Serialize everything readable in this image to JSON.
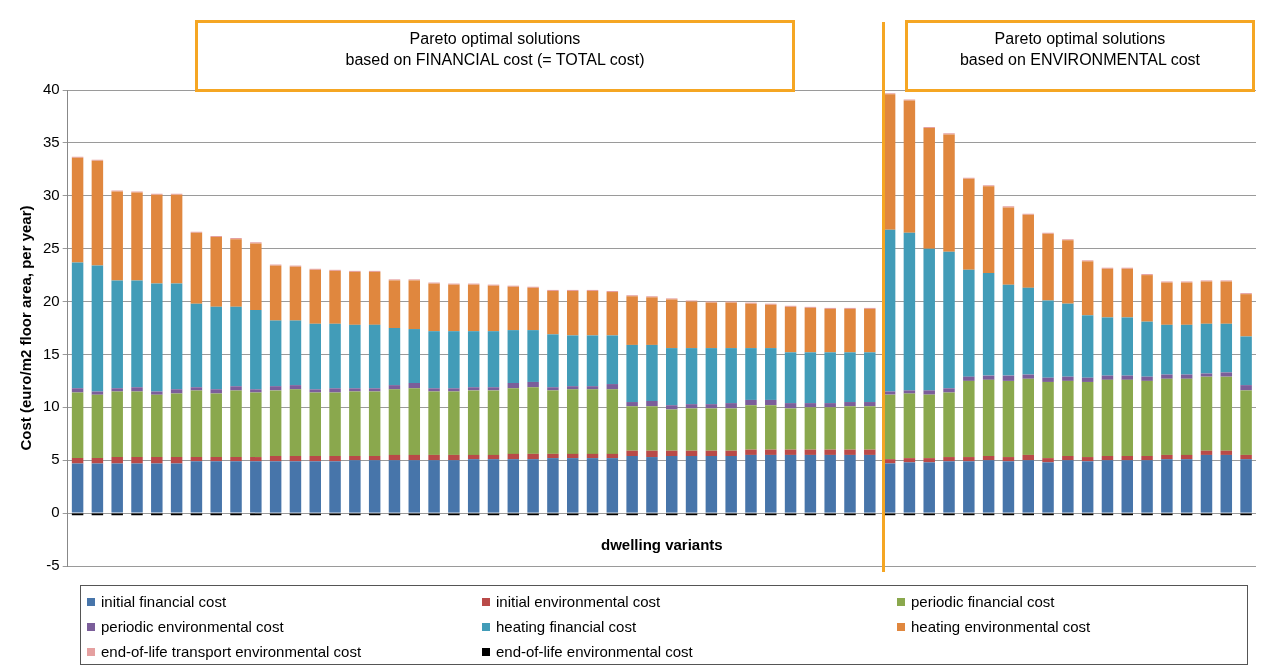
{
  "chart_data": {
    "type": "bar",
    "stacked": true,
    "xlabel": "dwelling variants",
    "ylabel": "Cost (euro/m2 floor area, per year)",
    "annotations": [
      "Pareto optimal solutions\nbased on FINANCIAL cost (= TOTAL cost)",
      "Pareto optimal solutions\nbased on ENVIRONMENTAL cost"
    ],
    "categories": [
      null,
      null,
      null,
      null,
      null,
      null,
      null,
      null,
      null,
      null,
      null,
      null,
      null,
      null,
      null,
      null,
      null,
      null,
      null,
      null,
      null,
      null,
      null,
      null,
      null,
      null,
      null,
      null,
      null,
      null,
      null,
      null,
      null,
      null,
      null,
      null,
      null,
      null,
      null,
      null,
      null,
      null,
      null,
      null,
      null,
      null,
      null,
      null,
      null,
      null,
      null,
      null,
      null,
      null,
      null,
      null,
      null,
      null,
      null,
      null
    ],
    "ylim": [
      -5,
      40
    ],
    "yticks": [
      -5,
      0,
      5,
      10,
      15,
      20,
      25,
      30,
      35,
      40
    ],
    "grid": "y",
    "legend": "bottom",
    "tick_labels": "y",
    "series": [
      {
        "name": "initial financial cost",
        "color": "#4775aa",
        "values": [
          4.7,
          4.7,
          4.7,
          4.7,
          4.7,
          4.7,
          4.9,
          4.9,
          4.9,
          4.9,
          4.9,
          4.9,
          4.9,
          4.9,
          5.0,
          5.0,
          5.0,
          5.0,
          5.0,
          5.0,
          5.1,
          5.1,
          5.1,
          5.1,
          5.2,
          5.2,
          5.2,
          5.2,
          5.4,
          5.3,
          5.4,
          5.4,
          5.4,
          5.4,
          5.5,
          5.5,
          5.5,
          5.5,
          5.5,
          5.5,
          5.5,
          4.7,
          4.8,
          4.8,
          4.9,
          4.9,
          5.0,
          4.9,
          5.0,
          4.8,
          5.0,
          4.9,
          5.0,
          5.0,
          5.0,
          5.1,
          5.1,
          5.5,
          5.5,
          5.1
        ]
      },
      {
        "name": "initial environmental cost",
        "color": "#b94a48",
        "values": [
          0.5,
          0.5,
          0.6,
          0.6,
          0.6,
          0.6,
          0.4,
          0.4,
          0.4,
          0.4,
          0.5,
          0.5,
          0.5,
          0.5,
          0.4,
          0.4,
          0.5,
          0.5,
          0.5,
          0.5,
          0.4,
          0.4,
          0.5,
          0.5,
          0.4,
          0.4,
          0.4,
          0.4,
          0.5,
          0.6,
          0.5,
          0.5,
          0.5,
          0.5,
          0.5,
          0.5,
          0.5,
          0.5,
          0.5,
          0.5,
          0.5,
          0.4,
          0.4,
          0.4,
          0.4,
          0.4,
          0.4,
          0.4,
          0.5,
          0.4,
          0.4,
          0.4,
          0.4,
          0.4,
          0.4,
          0.4,
          0.4,
          0.4,
          0.4,
          0.4
        ]
      },
      {
        "name": "periodic financial cost",
        "color": "#8aa84d",
        "values": [
          6.2,
          6.0,
          6.2,
          6.2,
          5.9,
          6.0,
          6.3,
          6.0,
          6.3,
          6.1,
          6.2,
          6.3,
          6.0,
          6.0,
          6.1,
          6.1,
          6.2,
          6.3,
          6.0,
          6.0,
          6.1,
          6.1,
          6.2,
          6.3,
          6.0,
          6.1,
          6.1,
          6.1,
          4.2,
          4.2,
          3.9,
          4.0,
          4.0,
          4.0,
          4.2,
          4.2,
          3.9,
          4.0,
          4.0,
          4.1,
          4.1,
          6.1,
          6.1,
          6.0,
          6.1,
          7.2,
          7.2,
          7.2,
          7.2,
          7.2,
          7.1,
          7.1,
          7.2,
          7.2,
          7.1,
          7.2,
          7.2,
          7.0,
          7.0,
          6.1
        ]
      },
      {
        "name": "periodic environmental cost",
        "color": "#7b5e9a",
        "values": [
          0.4,
          0.3,
          0.3,
          0.4,
          0.3,
          0.4,
          0.3,
          0.4,
          0.4,
          0.3,
          0.4,
          0.4,
          0.3,
          0.4,
          0.3,
          0.3,
          0.4,
          0.5,
          0.3,
          0.3,
          0.3,
          0.3,
          0.5,
          0.5,
          0.3,
          0.3,
          0.3,
          0.5,
          0.4,
          0.5,
          0.4,
          0.4,
          0.4,
          0.5,
          0.5,
          0.5,
          0.5,
          0.4,
          0.4,
          0.4,
          0.4,
          0.3,
          0.3,
          0.4,
          0.4,
          0.4,
          0.4,
          0.5,
          0.4,
          0.4,
          0.4,
          0.4,
          0.4,
          0.4,
          0.4,
          0.4,
          0.4,
          0.3,
          0.4,
          0.5
        ]
      },
      {
        "name": "heating financial cost",
        "color": "#429cb8",
        "values": [
          11.9,
          11.9,
          10.2,
          10.1,
          10.2,
          10.0,
          7.9,
          7.8,
          7.5,
          7.5,
          6.2,
          6.1,
          6.2,
          6.1,
          6.0,
          6.0,
          5.4,
          5.1,
          5.4,
          5.4,
          5.3,
          5.3,
          5.0,
          4.9,
          5.0,
          4.8,
          4.8,
          4.6,
          5.4,
          5.3,
          5.4,
          5.3,
          5.3,
          5.2,
          4.9,
          4.9,
          4.8,
          4.8,
          4.8,
          4.7,
          4.7,
          15.3,
          14.9,
          13.4,
          12.9,
          10.1,
          9.7,
          8.6,
          8.2,
          7.3,
          6.9,
          5.9,
          5.5,
          5.5,
          5.2,
          4.7,
          4.7,
          4.7,
          4.6,
          4.6
        ]
      },
      {
        "name": "heating environmental cost",
        "color": "#e0873e",
        "values": [
          9.9,
          9.9,
          8.4,
          8.3,
          8.4,
          8.4,
          6.7,
          6.6,
          6.4,
          6.3,
          5.2,
          5.1,
          5.1,
          5.0,
          5.0,
          5.0,
          4.5,
          4.6,
          4.5,
          4.4,
          4.4,
          4.3,
          4.1,
          4.0,
          4.1,
          4.2,
          4.2,
          4.1,
          4.6,
          4.5,
          4.6,
          4.4,
          4.3,
          4.3,
          4.2,
          4.1,
          4.3,
          4.2,
          4.1,
          4.1,
          4.1,
          12.8,
          12.5,
          11.4,
          11.1,
          8.6,
          8.2,
          7.3,
          6.9,
          6.3,
          6.0,
          5.1,
          4.6,
          4.6,
          4.4,
          4.0,
          4.0,
          4.0,
          4.0,
          4.0
        ]
      },
      {
        "name": "end-of-life transport environmental cost",
        "color": "#e5a0a0",
        "values": [
          0.1,
          0.1,
          0.1,
          0.1,
          0.1,
          0.1,
          0.1,
          0.1,
          0.1,
          0.1,
          0.1,
          0.1,
          0.1,
          0.1,
          0.1,
          0.1,
          0.1,
          0.1,
          0.1,
          0.1,
          0.1,
          0.1,
          0.1,
          0.1,
          0.1,
          0.1,
          0.1,
          0.1,
          0.1,
          0.1,
          0.1,
          0.1,
          0.1,
          0.1,
          0.1,
          0.1,
          0.1,
          0.1,
          0.1,
          0.1,
          0.1,
          0.1,
          0.1,
          0.1,
          0.1,
          0.1,
          0.1,
          0.1,
          0.1,
          0.1,
          0.1,
          0.1,
          0.1,
          0.1,
          0.1,
          0.1,
          0.1,
          0.1,
          0.1,
          0.1
        ]
      },
      {
        "name": "end-of-life environmental cost",
        "color": "#000000",
        "values": [
          -0.2,
          -0.2,
          -0.2,
          -0.2,
          -0.2,
          -0.2,
          -0.2,
          -0.2,
          -0.2,
          -0.2,
          -0.2,
          -0.2,
          -0.2,
          -0.2,
          -0.2,
          -0.2,
          -0.2,
          -0.2,
          -0.2,
          -0.2,
          -0.2,
          -0.2,
          -0.2,
          -0.2,
          -0.2,
          -0.2,
          -0.2,
          -0.2,
          -0.2,
          -0.2,
          -0.2,
          -0.2,
          -0.2,
          -0.2,
          -0.2,
          -0.2,
          -0.2,
          -0.2,
          -0.2,
          -0.2,
          -0.2,
          -0.2,
          -0.2,
          -0.2,
          -0.2,
          -0.2,
          -0.2,
          -0.2,
          -0.2,
          -0.2,
          -0.2,
          -0.2,
          -0.2,
          -0.2,
          -0.2,
          -0.2,
          -0.2,
          -0.2,
          -0.2,
          -0.2
        ]
      }
    ]
  }
}
